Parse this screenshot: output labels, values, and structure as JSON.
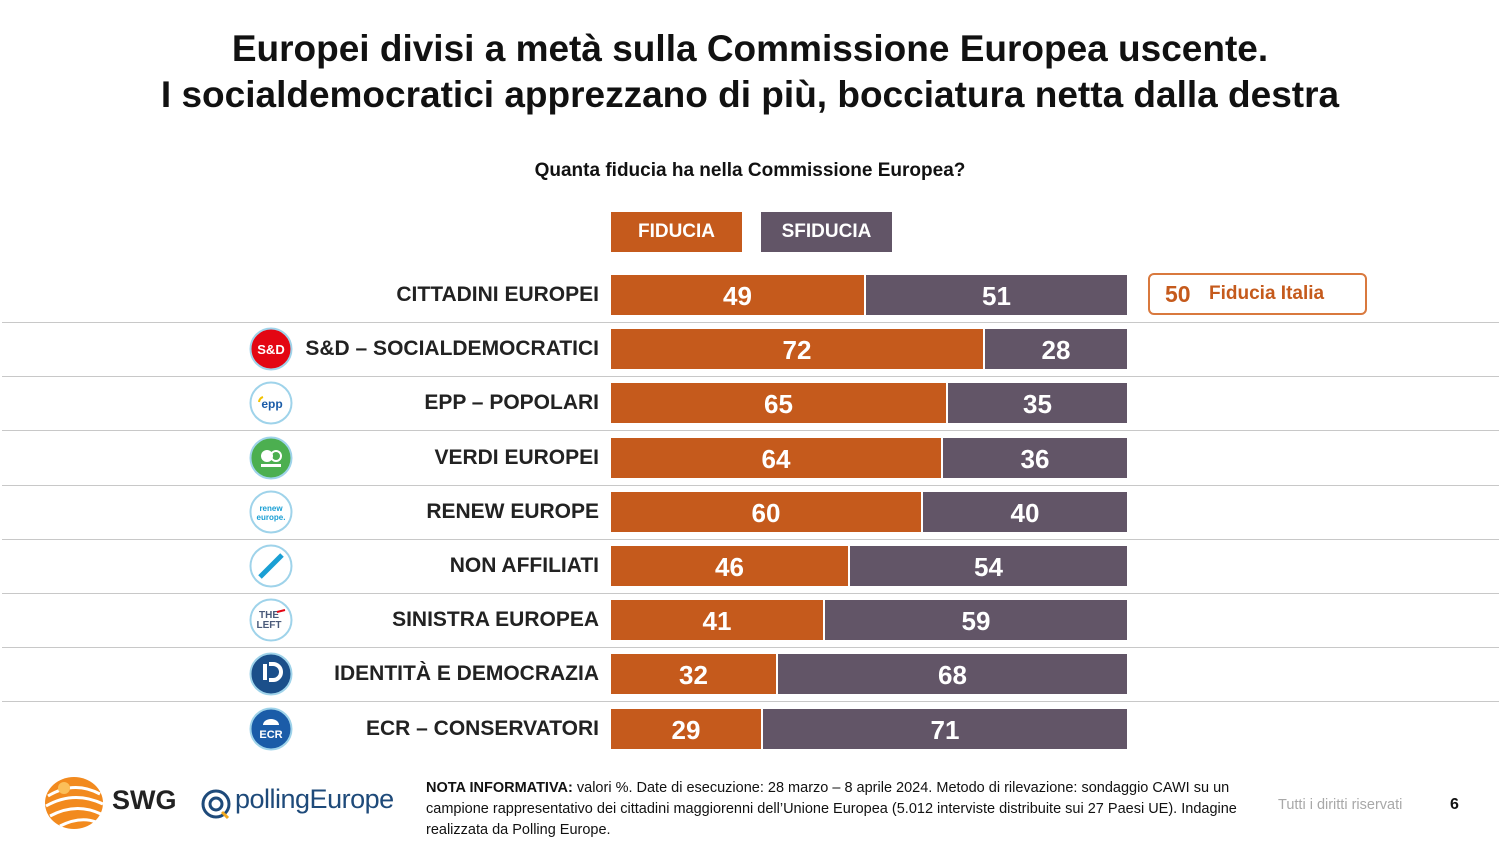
{
  "title_line1": "Europei divisi a metà sulla Commissione Europea uscente.",
  "title_line2": "I socialdemocratici apprezzano di più, bocciatura netta dalla destra",
  "colors": {
    "fiducia": "#c55a1c",
    "sfiducia": "#625567"
  },
  "chart_data": {
    "type": "bar",
    "orientation": "horizontal",
    "stacked": true,
    "title": "Quanta fiducia ha nella Commissione Europea?",
    "categories": [
      "CITTADINI EUROPEI",
      "S&D – SOCIALDEMOCRATICI",
      "EPP – POPOLARI",
      "VERDI EUROPEI",
      "RENEW EUROPE",
      "NON AFFILIATI",
      "SINISTRA EUROPEA",
      "IDENTITÀ E DEMOCRAZIA",
      "ECR – CONSERVATORI"
    ],
    "series": [
      {
        "name": "FIDUCIA",
        "values": [
          49,
          72,
          65,
          64,
          60,
          46,
          41,
          32,
          29
        ]
      },
      {
        "name": "SFIDUCIA",
        "values": [
          51,
          28,
          35,
          36,
          40,
          54,
          59,
          68,
          71
        ]
      }
    ],
    "xlim": [
      0,
      100
    ],
    "legend_position": "top",
    "annotation": {
      "value": "50",
      "label": "Fiducia Italia"
    }
  },
  "party_logos": [
    "",
    "sd-logo",
    "epp-logo",
    "greens-logo",
    "renew-logo",
    "non-affiliated-logo",
    "left-logo",
    "id-logo",
    "ecr-logo"
  ],
  "logo_texts": {
    "sd": "S&D",
    "epp": "epp",
    "renew_line1": "renew",
    "renew_line2": "europe.",
    "left_line1": "THE",
    "left_line2": "LEFT",
    "ecr": "ECR"
  },
  "footer": {
    "note_label": "NOTA INFORMATIVA:",
    "note_text": " valori %. Date di esecuzione: 28 marzo – 8 aprile 2024. Metodo di rilevazione: sondaggio CAWI su un campione rappresentativo dei cittadini maggiorenni dell’Unione Europea (5.012 interviste distribuite sui 27 Paesi UE). Indagine realizzata da Polling Europe.",
    "rights": "Tutti i diritti riservati",
    "page": "6",
    "brand_swg": "SWG",
    "brand_pe": "pollingEurope"
  }
}
